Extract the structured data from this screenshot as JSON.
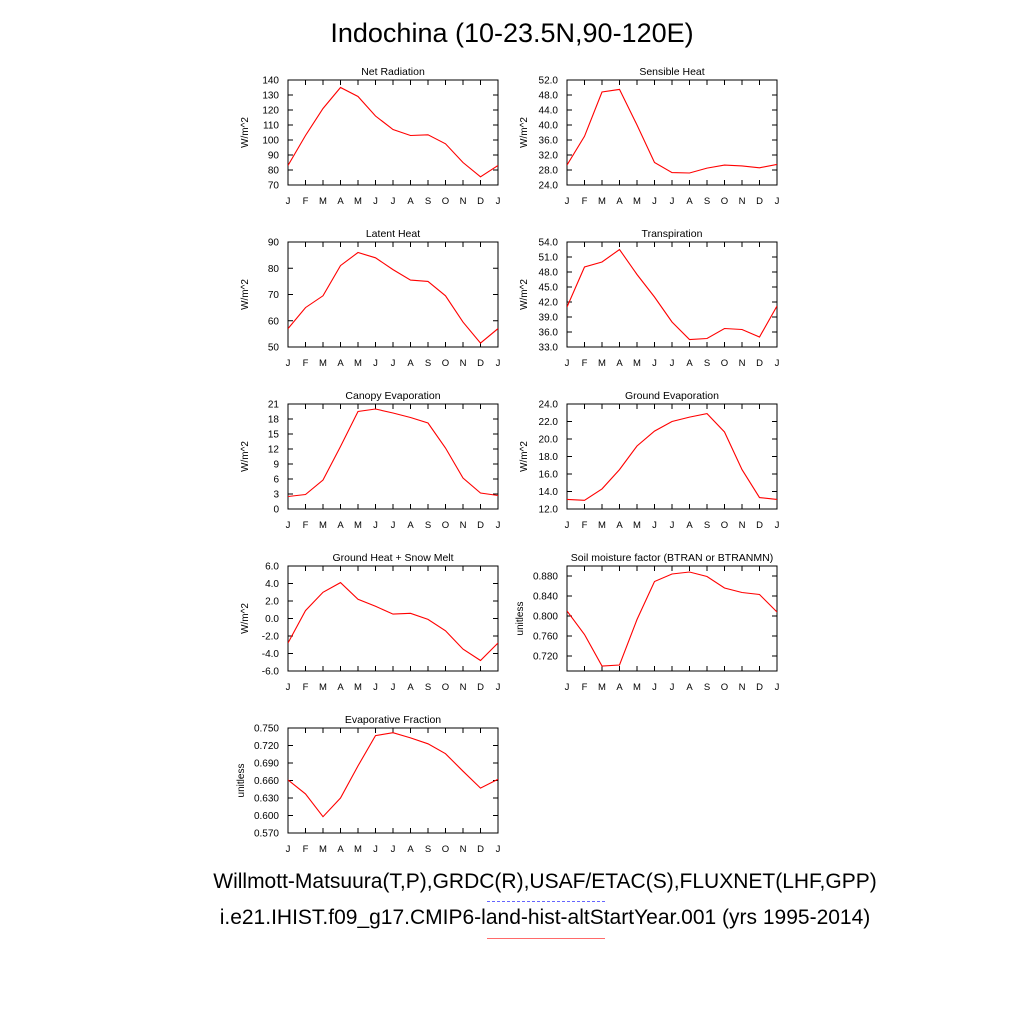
{
  "title": "Indochina (10-23.5N,90-120E)",
  "legend": {
    "observations": "Willmott-Matsuura(T,P),GRDC(R),USAF/ETAC(S),FLUXNET(LHF,GPP)",
    "model": "i.e21.IHIST.f09_g17.CMIP6-land-hist-altStartYear.001 (yrs 1995-2014)",
    "observations_color": "#6666ff",
    "model_color": "#ff0000"
  },
  "chart_data": [
    {
      "type": "line",
      "title": "Net Radiation",
      "ylabel": "W/m^2",
      "x": [
        "J",
        "F",
        "M",
        "A",
        "M",
        "J",
        "J",
        "A",
        "S",
        "O",
        "N",
        "D",
        "J"
      ],
      "ylim": [
        70,
        140
      ],
      "yticks": [
        "70",
        "80",
        "90",
        "100",
        "110",
        "120",
        "130",
        "140"
      ],
      "grid": false,
      "series": [
        {
          "values": [
            83,
            103,
            121,
            135,
            129,
            116,
            107,
            103,
            103.5,
            97.5,
            85,
            75.5,
            83
          ]
        }
      ]
    },
    {
      "type": "line",
      "title": "Sensible Heat",
      "ylabel": "W/m^2",
      "x": [
        "J",
        "F",
        "M",
        "A",
        "M",
        "J",
        "J",
        "A",
        "S",
        "O",
        "N",
        "D",
        "J"
      ],
      "ylim": [
        24,
        52
      ],
      "yticks": [
        "24.0",
        "28.0",
        "32.0",
        "36.0",
        "40.0",
        "44.0",
        "48.0",
        "52.0"
      ],
      "grid": false,
      "series": [
        {
          "values": [
            29.3,
            37,
            48.8,
            49.5,
            40,
            30,
            27.3,
            27.2,
            28.5,
            29.3,
            29.1,
            28.6,
            29.5
          ]
        }
      ]
    },
    {
      "type": "line",
      "title": "Latent Heat",
      "ylabel": "W/m^2",
      "x": [
        "J",
        "F",
        "M",
        "A",
        "M",
        "J",
        "J",
        "A",
        "S",
        "O",
        "N",
        "D",
        "J"
      ],
      "ylim": [
        50,
        90
      ],
      "yticks": [
        "50",
        "60",
        "70",
        "80",
        "90"
      ],
      "grid": false,
      "series": [
        {
          "values": [
            57,
            65,
            69.5,
            81,
            86,
            84,
            79.5,
            75.5,
            75,
            69.5,
            59.5,
            51.5,
            57
          ]
        }
      ]
    },
    {
      "type": "line",
      "title": "Transpiration",
      "ylabel": "W/m^2",
      "x": [
        "J",
        "F",
        "M",
        "A",
        "M",
        "J",
        "J",
        "A",
        "S",
        "O",
        "N",
        "D",
        "J"
      ],
      "ylim": [
        33,
        54
      ],
      "yticks": [
        "33.0",
        "36.0",
        "39.0",
        "42.0",
        "45.0",
        "48.0",
        "51.0",
        "54.0"
      ],
      "grid": false,
      "series": [
        {
          "values": [
            41,
            49,
            50,
            52.5,
            47.5,
            43,
            38,
            34.5,
            34.7,
            36.7,
            36.5,
            35,
            41.2
          ]
        }
      ]
    },
    {
      "type": "line",
      "title": "Canopy Evaporation",
      "ylabel": "W/m^2",
      "x": [
        "J",
        "F",
        "M",
        "A",
        "M",
        "J",
        "J",
        "A",
        "S",
        "O",
        "N",
        "D",
        "J"
      ],
      "ylim": [
        0,
        21
      ],
      "yticks": [
        "0",
        "3",
        "6",
        "9",
        "12",
        "15",
        "18",
        "21"
      ],
      "grid": false,
      "series": [
        {
          "values": [
            2.5,
            2.9,
            5.8,
            12.5,
            19.5,
            20,
            19.2,
            18.3,
            17.2,
            12.2,
            6.2,
            3.2,
            2.7
          ]
        }
      ]
    },
    {
      "type": "line",
      "title": "Ground Evaporation",
      "ylabel": "W/m^2",
      "x": [
        "J",
        "F",
        "M",
        "A",
        "M",
        "J",
        "J",
        "A",
        "S",
        "O",
        "N",
        "D",
        "J"
      ],
      "ylim": [
        12,
        24
      ],
      "yticks": [
        "12.0",
        "14.0",
        "16.0",
        "18.0",
        "20.0",
        "22.0",
        "24.0"
      ],
      "grid": false,
      "series": [
        {
          "values": [
            13.1,
            13,
            14.3,
            16.5,
            19.2,
            20.9,
            22,
            22.5,
            22.9,
            20.8,
            16.5,
            13.3,
            13.1
          ]
        }
      ]
    },
    {
      "type": "line",
      "title": "Ground Heat + Snow Melt",
      "ylabel": "W/m^2",
      "x": [
        "J",
        "F",
        "M",
        "A",
        "M",
        "J",
        "J",
        "A",
        "S",
        "O",
        "N",
        "D",
        "J"
      ],
      "ylim": [
        -6,
        6
      ],
      "yticks": [
        "-6.0",
        "-4.0",
        "-2.0",
        "0.0",
        "2.0",
        "4.0",
        "6.0"
      ],
      "grid": false,
      "series": [
        {
          "values": [
            -2.8,
            0.9,
            3,
            4.1,
            2.2,
            1.4,
            0.5,
            0.6,
            -0.1,
            -1.4,
            -3.5,
            -4.8,
            -2.8
          ]
        }
      ]
    },
    {
      "type": "line",
      "title": "Soil moisture factor (BTRAN or BTRANMN)",
      "ylabel": "unitless",
      "x": [
        "J",
        "F",
        "M",
        "A",
        "M",
        "J",
        "J",
        "A",
        "S",
        "O",
        "N",
        "D",
        "J"
      ],
      "ylim": [
        0.69,
        0.9
      ],
      "yticks": [
        "0.720",
        "0.760",
        "0.800",
        "0.840",
        "0.880"
      ],
      "grid": false,
      "series": [
        {
          "values": [
            0.81,
            0.763,
            0.7,
            0.702,
            0.793,
            0.869,
            0.884,
            0.888,
            0.879,
            0.856,
            0.847,
            0.843,
            0.808
          ]
        }
      ]
    },
    {
      "type": "line",
      "title": "Evaporative Fraction",
      "ylabel": "unitless",
      "x": [
        "J",
        "F",
        "M",
        "A",
        "M",
        "J",
        "J",
        "A",
        "S",
        "O",
        "N",
        "D",
        "J"
      ],
      "ylim": [
        0.57,
        0.75
      ],
      "yticks": [
        "0.570",
        "0.600",
        "0.630",
        "0.660",
        "0.690",
        "0.720",
        "0.750"
      ],
      "grid": false,
      "series": [
        {
          "values": [
            0.661,
            0.637,
            0.598,
            0.63,
            0.685,
            0.737,
            0.742,
            0.733,
            0.723,
            0.706,
            0.676,
            0.647,
            0.662
          ]
        }
      ]
    }
  ]
}
